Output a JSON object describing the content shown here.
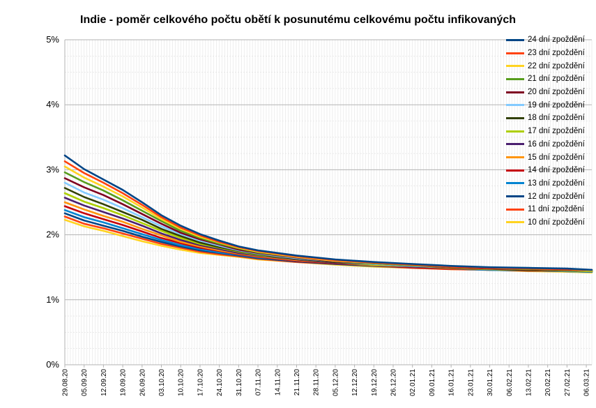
{
  "chart_data": {
    "type": "line",
    "title": "Indie - poměr celkového počtu obětí k posunutému celkovému počtu infikovaných",
    "xlabel": "",
    "ylabel": "",
    "ylim": [
      0,
      0.05
    ],
    "yticks": [
      "0%",
      "1%",
      "2%",
      "3%",
      "4%",
      "5%"
    ],
    "x_start": "29.08.20",
    "x_end": "08.03.21",
    "x_tick_labels": [
      "29.08.20",
      "05.09.20",
      "12.09.20",
      "19.09.20",
      "26.09.20",
      "03.10.20",
      "10.10.20",
      "17.10.20",
      "24.10.20",
      "31.10.20",
      "07.11.20",
      "14.11.20",
      "21.11.20",
      "28.11.20",
      "05.12.20",
      "12.12.20",
      "19.12.20",
      "26.12.20",
      "02.01.21",
      "09.01.21",
      "16.01.21",
      "23.01.21",
      "30.01.21",
      "06.02.21",
      "13.02.21",
      "20.02.21",
      "27.02.21",
      "06.03.21"
    ],
    "grid": true,
    "legend_position": "right",
    "anchor_dates": [
      "29.08.20",
      "05.09.20",
      "12.09.20",
      "19.09.20",
      "26.09.20",
      "03.10.20",
      "10.10.20",
      "17.10.20",
      "24.10.20",
      "31.10.20",
      "07.11.20",
      "21.11.20",
      "05.12.20",
      "19.12.20",
      "02.01.21",
      "16.01.21",
      "30.01.21",
      "13.02.21",
      "27.02.21",
      "08.03.21"
    ],
    "series": [
      {
        "name": "24 dní zpoždění",
        "color": "#004586",
        "values": [
          0.0322,
          0.0301,
          0.0285,
          0.0269,
          0.025,
          0.023,
          0.0214,
          0.0201,
          0.0191,
          0.0182,
          0.0176,
          0.0168,
          0.0162,
          0.0158,
          0.0155,
          0.0152,
          0.015,
          0.0149,
          0.0148,
          0.0146
        ]
      },
      {
        "name": "23 dní zpoždění",
        "color": "#ff420e",
        "values": [
          0.0313,
          0.0295,
          0.028,
          0.0264,
          0.0246,
          0.0227,
          0.0211,
          0.0199,
          0.0189,
          0.0181,
          0.0175,
          0.0167,
          0.0161,
          0.0157,
          0.0154,
          0.0151,
          0.0149,
          0.0148,
          0.0147,
          0.0146
        ]
      },
      {
        "name": "22 dní zpoždění",
        "color": "#ffd320",
        "values": [
          0.0305,
          0.0288,
          0.0274,
          0.0259,
          0.0242,
          0.0224,
          0.0209,
          0.0197,
          0.0188,
          0.018,
          0.0174,
          0.0166,
          0.016,
          0.0157,
          0.0154,
          0.0151,
          0.0149,
          0.0148,
          0.0147,
          0.0145
        ]
      },
      {
        "name": "21 dní zpoždění",
        "color": "#579d1c",
        "values": [
          0.0296,
          0.0281,
          0.0268,
          0.0253,
          0.0237,
          0.0221,
          0.0206,
          0.0195,
          0.0186,
          0.0179,
          0.0173,
          0.0166,
          0.016,
          0.0156,
          0.0153,
          0.0151,
          0.0149,
          0.0147,
          0.0147,
          0.0145
        ]
      },
      {
        "name": "20 dní zpoždění",
        "color": "#7e0021",
        "values": [
          0.0287,
          0.0273,
          0.0261,
          0.0247,
          0.0232,
          0.0217,
          0.0203,
          0.0193,
          0.0185,
          0.0177,
          0.0172,
          0.0165,
          0.0159,
          0.0156,
          0.0153,
          0.015,
          0.0148,
          0.0147,
          0.0146,
          0.0145
        ]
      },
      {
        "name": "19 dní zpoždění",
        "color": "#83caff",
        "values": [
          0.028,
          0.0265,
          0.0254,
          0.0241,
          0.0227,
          0.0213,
          0.0201,
          0.0191,
          0.0183,
          0.0176,
          0.0171,
          0.0164,
          0.0159,
          0.0155,
          0.0152,
          0.015,
          0.0148,
          0.0147,
          0.0146,
          0.0145
        ]
      },
      {
        "name": "18 dní zpoždění",
        "color": "#314004",
        "values": [
          0.0272,
          0.0258,
          0.0247,
          0.0235,
          0.0223,
          0.0209,
          0.0198,
          0.0188,
          0.0181,
          0.0175,
          0.017,
          0.0163,
          0.0158,
          0.0155,
          0.0152,
          0.015,
          0.0148,
          0.0146,
          0.0146,
          0.0145
        ]
      },
      {
        "name": "17 dní zpoždění",
        "color": "#aecf00",
        "values": [
          0.0264,
          0.0251,
          0.0241,
          0.023,
          0.0218,
          0.0206,
          0.0195,
          0.0186,
          0.018,
          0.0174,
          0.0169,
          0.0163,
          0.0158,
          0.0154,
          0.0152,
          0.0149,
          0.0147,
          0.0146,
          0.0145,
          0.0144
        ]
      },
      {
        "name": "16 dní zpoždění",
        "color": "#4b1f6f",
        "values": [
          0.0257,
          0.0245,
          0.0235,
          0.0225,
          0.0214,
          0.0202,
          0.0192,
          0.0184,
          0.0178,
          0.0172,
          0.0168,
          0.0162,
          0.0157,
          0.0154,
          0.0151,
          0.0149,
          0.0147,
          0.0146,
          0.0145,
          0.0144
        ]
      },
      {
        "name": "15 dní zpoždění",
        "color": "#ff950e",
        "values": [
          0.025,
          0.0239,
          0.0229,
          0.022,
          0.0209,
          0.0199,
          0.0189,
          0.0182,
          0.0176,
          0.0171,
          0.0167,
          0.0161,
          0.0157,
          0.0153,
          0.0151,
          0.0149,
          0.0147,
          0.0146,
          0.0145,
          0.0144
        ]
      },
      {
        "name": "14 dní zpoždění",
        "color": "#c5000b",
        "values": [
          0.0244,
          0.0233,
          0.0224,
          0.0215,
          0.0205,
          0.0195,
          0.0187,
          0.018,
          0.0175,
          0.017,
          0.0166,
          0.016,
          0.0156,
          0.0153,
          0.015,
          0.0148,
          0.0147,
          0.0145,
          0.0145,
          0.0144
        ]
      },
      {
        "name": "13 dní zpoždění",
        "color": "#0084d1",
        "values": [
          0.0238,
          0.0227,
          0.0219,
          0.021,
          0.0201,
          0.0192,
          0.0184,
          0.0178,
          0.0173,
          0.0169,
          0.0165,
          0.016,
          0.0156,
          0.0153,
          0.015,
          0.0148,
          0.0146,
          0.0145,
          0.0144,
          0.0143
        ]
      },
      {
        "name": "12 dní zpoždění",
        "color": "#004586",
        "values": [
          0.0233,
          0.0222,
          0.0214,
          0.0206,
          0.0197,
          0.0189,
          0.0182,
          0.0176,
          0.0172,
          0.0168,
          0.0164,
          0.0159,
          0.0155,
          0.0152,
          0.015,
          0.0148,
          0.0146,
          0.0145,
          0.0144,
          0.0143
        ]
      },
      {
        "name": "11 dní zpoždění",
        "color": "#ff420e",
        "values": [
          0.0228,
          0.0217,
          0.021,
          0.0202,
          0.0194,
          0.0186,
          0.018,
          0.0174,
          0.017,
          0.0167,
          0.0163,
          0.0158,
          0.0155,
          0.0152,
          0.0149,
          0.0147,
          0.0146,
          0.0145,
          0.0144,
          0.0143
        ]
      },
      {
        "name": "10 dní zpoždění",
        "color": "#ffd320",
        "values": [
          0.0223,
          0.0213,
          0.0206,
          0.0198,
          0.019,
          0.0183,
          0.0177,
          0.0172,
          0.0169,
          0.0166,
          0.0162,
          0.0158,
          0.0154,
          0.0151,
          0.0149,
          0.0147,
          0.0146,
          0.0144,
          0.0143,
          0.0142
        ]
      }
    ]
  }
}
